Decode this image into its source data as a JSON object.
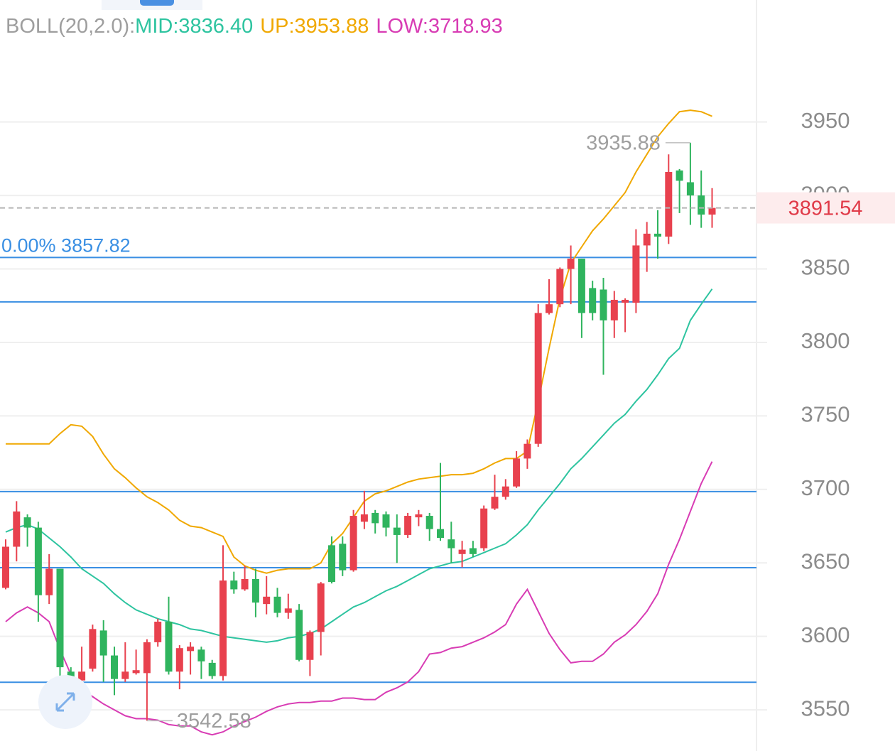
{
  "chart_data": {
    "type": "candlestick",
    "indicator": "BOLL(20,2.0):",
    "up_color": "#e8414e",
    "down_color": "#2fb45e",
    "open": [
      3633,
      3661,
      3681,
      3674,
      3628,
      3646,
      3576,
      3570,
      3578,
      3604,
      3587,
      3571,
      3575,
      3575,
      3596,
      3610,
      3576,
      3590,
      3591,
      3582,
      3573,
      3638,
      3632,
      3639,
      3622,
      3627,
      3616,
      3618,
      3584,
      3603,
      3662,
      3663,
      3645,
      3678,
      3684,
      3683,
      3674,
      3669,
      3681,
      3682,
      3673,
      3666,
      3656,
      3660,
      3660,
      3687,
      3695,
      3702,
      3721,
      3731,
      3820,
      3826,
      3850,
      3857,
      3837,
      3836,
      3815,
      3827,
      3827,
      3866,
      3874,
      3872,
      3917,
      3909,
      3900,
      3887
    ],
    "high": [
      3666,
      3692,
      3683,
      3678,
      3656,
      3646,
      3579,
      3593,
      3608,
      3611,
      3593,
      3596,
      3591,
      3598,
      3612,
      3627,
      3594,
      3596,
      3593,
      3584,
      3662,
      3644,
      3648,
      3646,
      3641,
      3633,
      3629,
      3622,
      3604,
      3637,
      3668,
      3668,
      3686,
      3699,
      3686,
      3685,
      3683,
      3684,
      3686,
      3684,
      3718,
      3678,
      3665,
      3665,
      3689,
      3710,
      3707,
      3726,
      3734,
      3826,
      3843,
      3851,
      3866,
      3857,
      3842,
      3844,
      3835,
      3830,
      3877,
      3882,
      3890,
      3928,
      3918,
      3935.88,
      3917,
      3905
    ],
    "low": [
      3632,
      3651,
      3661,
      3610,
      3622,
      3559,
      3557,
      3562,
      3576,
      3569,
      3560,
      3569,
      3574,
      3542.58,
      3593,
      3574,
      3564,
      3574,
      3571,
      3571,
      3570,
      3629,
      3631,
      3613,
      3615,
      3613,
      3612,
      3583,
      3573,
      3587,
      3636,
      3641,
      3644,
      3673,
      3670,
      3668,
      3650,
      3667,
      3675,
      3665,
      3665,
      3650,
      3647,
      3654,
      3658,
      3686,
      3693,
      3701,
      3714,
      3729,
      3819,
      3824,
      3826,
      3803,
      3815,
      3778,
      3803,
      3807,
      3820,
      3848,
      3857,
      3867,
      3888,
      3880,
      3878,
      3878
    ],
    "close": [
      3661,
      3685,
      3674,
      3628,
      3646,
      3579,
      3570,
      3576,
      3605,
      3587,
      3571,
      3576,
      3577,
      3596,
      3610,
      3576,
      3592,
      3593,
      3583,
      3573,
      3638,
      3632,
      3639,
      3623,
      3627,
      3616,
      3619,
      3584,
      3603,
      3636,
      3637,
      3645,
      3682,
      3683,
      3677,
      3674,
      3669,
      3682,
      3683,
      3673,
      3667,
      3660,
      3659,
      3656,
      3687,
      3695,
      3702,
      3721,
      3731,
      3820,
      3826,
      3850,
      3857,
      3820,
      3820,
      3815,
      3829,
      3829,
      3866,
      3874,
      3872,
      3916,
      3910,
      3900,
      3887,
      3891.54
    ],
    "series": [
      {
        "name": "MID:3836.40",
        "color": "#2ec4a0",
        "values": [
          3671,
          3674,
          3676,
          3673,
          3667,
          3661,
          3654,
          3646,
          3641,
          3636,
          3629,
          3623,
          3618,
          3615,
          3612,
          3610,
          3608,
          3605,
          3604,
          3602,
          3600,
          3599,
          3598,
          3597,
          3596,
          3597,
          3599,
          3600,
          3602,
          3605,
          3610,
          3615,
          3620,
          3623,
          3627,
          3631,
          3634,
          3638,
          3642,
          3646,
          3648,
          3650,
          3651,
          3654,
          3657,
          3660,
          3663,
          3669,
          3676,
          3686,
          3695,
          3704,
          3714,
          3721,
          3729,
          3737,
          3745,
          3751,
          3760,
          3768,
          3778,
          3789,
          3796,
          3815,
          3826,
          3836.4
        ]
      },
      {
        "name": "UP:3953.88",
        "color": "#f0a800",
        "values": [
          3731,
          3731,
          3731,
          3731,
          3731,
          3738,
          3744,
          3743,
          3736,
          3724,
          3714,
          3708,
          3701,
          3695,
          3691,
          3686,
          3679,
          3675,
          3674,
          3671,
          3668,
          3654,
          3648,
          3645,
          3643,
          3645,
          3646,
          3646,
          3646,
          3650,
          3663,
          3670,
          3681,
          3692,
          3697,
          3699,
          3702,
          3705,
          3707,
          3708,
          3709,
          3710,
          3710,
          3711,
          3714,
          3718,
          3721,
          3721,
          3726,
          3760,
          3796,
          3830,
          3854,
          3865,
          3876,
          3884,
          3893,
          3902,
          3916,
          3928,
          3940,
          3949,
          3957,
          3958,
          3957,
          3953.88
        ]
      },
      {
        "name": "LOW:3718.93",
        "color": "#d83cb4",
        "values": [
          3610,
          3616,
          3620,
          3616,
          3610,
          3591,
          3574,
          3564,
          3559,
          3554,
          3550,
          3546,
          3544,
          3544,
          3543,
          3540,
          3539,
          3539,
          3535,
          3533,
          3535,
          3539,
          3542,
          3545,
          3549,
          3552,
          3554,
          3555,
          3555,
          3556,
          3556,
          3558,
          3558,
          3557,
          3557,
          3562,
          3565,
          3569,
          3576,
          3588,
          3589,
          3592,
          3593,
          3596,
          3599,
          3603,
          3608,
          3622,
          3632,
          3617,
          3602,
          3591,
          3582,
          3583,
          3583,
          3588,
          3596,
          3601,
          3608,
          3617,
          3629,
          3649,
          3666,
          3685,
          3704,
          3718.93
        ]
      }
    ],
    "levels": [
      {
        "value": 3857.82,
        "label": "0.00% 3857.82"
      },
      3827.6,
      3698.5,
      3646.7,
      3568.8
    ],
    "level_color": "#3a8fe3",
    "current_price": 3891.54,
    "max_label": 3935.88,
    "min_label": 3542.58,
    "ylim": [
      3522,
      4033
    ],
    "yticks": [
      3550,
      3600,
      3650,
      3700,
      3750,
      3800,
      3850,
      3900,
      3950
    ],
    "grid": true
  }
}
